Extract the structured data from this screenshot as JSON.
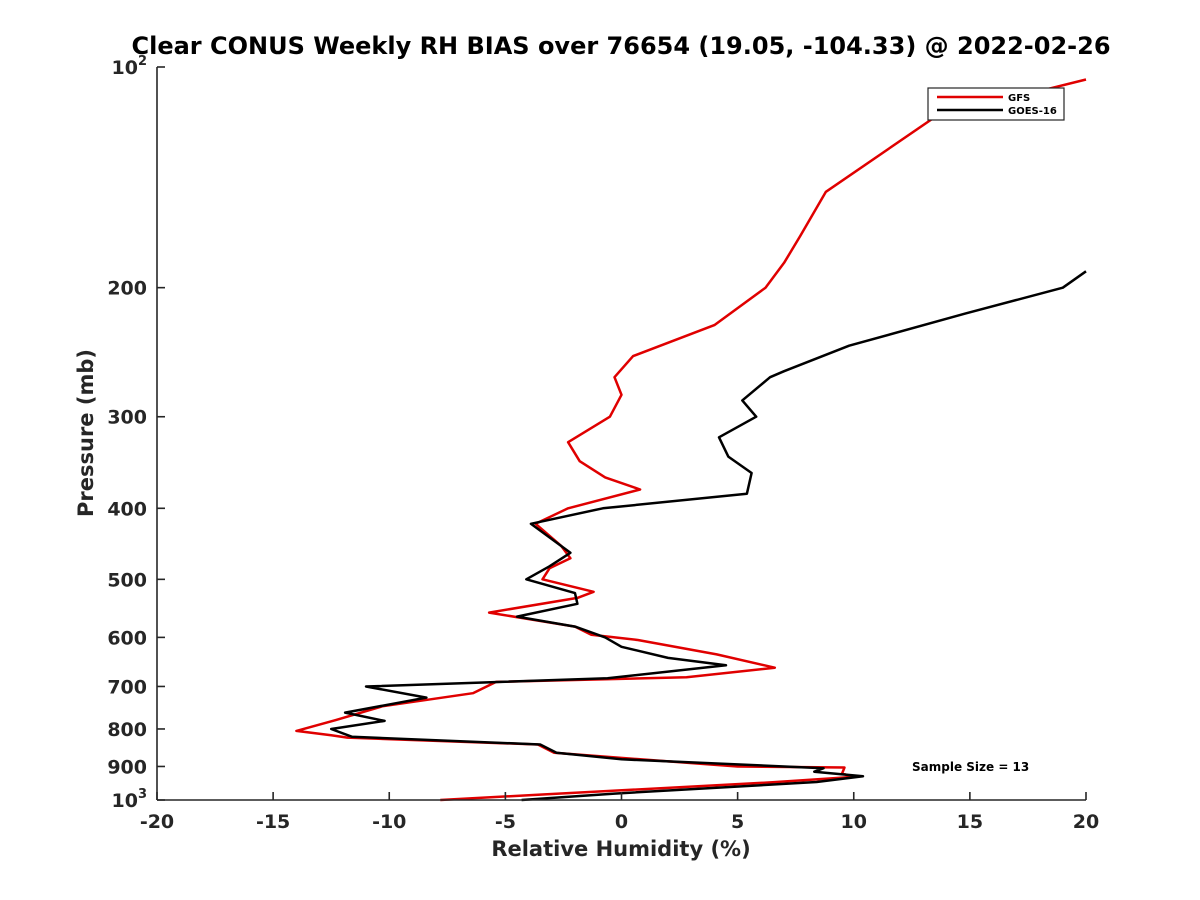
{
  "chart_data": {
    "type": "line",
    "title": "Clear CONUS Weekly RH BIAS over 76654 (19.05, -104.33) @ 2022-02-26",
    "xlabel": "Relative Humidity (%)",
    "ylabel": "Pressure (mb)",
    "xlim": [
      -20,
      20
    ],
    "ylim": [
      100,
      1000
    ],
    "yscale": "log",
    "y_reversed": true,
    "xticks": [
      -20,
      -15,
      -10,
      -5,
      0,
      5,
      10,
      15,
      20
    ],
    "xtick_labels": [
      "-20",
      "-15",
      "-10",
      "-5",
      "0",
      "5",
      "10",
      "15",
      "20"
    ],
    "yticks": [
      {
        "value": 100,
        "base": "10",
        "exp": "2"
      },
      {
        "value": 200,
        "label": "200"
      },
      {
        "value": 300,
        "label": "300"
      },
      {
        "value": 400,
        "label": "400"
      },
      {
        "value": 500,
        "label": "500"
      },
      {
        "value": 600,
        "label": "600"
      },
      {
        "value": 700,
        "label": "700"
      },
      {
        "value": 800,
        "label": "800"
      },
      {
        "value": 900,
        "label": "900"
      },
      {
        "value": 1000,
        "base": "10",
        "exp": "3"
      }
    ],
    "legend_position": "top-right",
    "annotation": "Sample Size = 13",
    "series": [
      {
        "name": "GFS",
        "color": "#e00000",
        "points": [
          [
            20,
            104
          ],
          [
            13.5,
            117
          ],
          [
            8.8,
            148
          ],
          [
            7.7,
            170
          ],
          [
            7.0,
            185
          ],
          [
            6.2,
            200
          ],
          [
            4.0,
            225
          ],
          [
            0.5,
            248
          ],
          [
            -0.3,
            265
          ],
          [
            0.0,
            280
          ],
          [
            -0.5,
            300
          ],
          [
            -2.3,
            325
          ],
          [
            -1.8,
            345
          ],
          [
            -0.7,
            363
          ],
          [
            0.8,
            377
          ],
          [
            -2.3,
            400
          ],
          [
            -3.7,
            420
          ],
          [
            -2.6,
            450
          ],
          [
            -2.2,
            468
          ],
          [
            -3.1,
            483
          ],
          [
            -3.4,
            500
          ],
          [
            -1.2,
            520
          ],
          [
            -1.9,
            530
          ],
          [
            -5.7,
            555
          ],
          [
            -2.0,
            580
          ],
          [
            -1.3,
            595
          ],
          [
            0.7,
            605
          ],
          [
            4.1,
            633
          ],
          [
            6.6,
            660
          ],
          [
            2.8,
            680
          ],
          [
            -5.4,
            690
          ],
          [
            -6.4,
            715
          ],
          [
            -10.3,
            745
          ],
          [
            -12.3,
            778
          ],
          [
            -14.0,
            805
          ],
          [
            -12.5,
            816
          ],
          [
            -11.8,
            822
          ],
          [
            -3.6,
            840
          ],
          [
            -2.9,
            862
          ],
          [
            0.8,
            880
          ],
          [
            5.0,
            900
          ],
          [
            9.6,
            903
          ],
          [
            9.5,
            920
          ],
          [
            10.0,
            930
          ],
          [
            6.5,
            946
          ],
          [
            -3.4,
            983
          ],
          [
            -7.8,
            1000
          ]
        ]
      },
      {
        "name": "GOES-16",
        "color": "#000000",
        "points": [
          [
            20,
            190
          ],
          [
            19.0,
            200
          ],
          [
            14.8,
            217
          ],
          [
            9.8,
            240
          ],
          [
            7.0,
            260
          ],
          [
            6.4,
            265
          ],
          [
            5.2,
            285
          ],
          [
            5.8,
            300
          ],
          [
            4.2,
            320
          ],
          [
            4.6,
            340
          ],
          [
            5.6,
            358
          ],
          [
            5.4,
            382
          ],
          [
            -0.8,
            400
          ],
          [
            -3.9,
            420
          ],
          [
            -2.2,
            460
          ],
          [
            -3.1,
            480
          ],
          [
            -4.1,
            500
          ],
          [
            -2.0,
            522
          ],
          [
            -1.9,
            540
          ],
          [
            -4.5,
            562
          ],
          [
            -2.0,
            580
          ],
          [
            -0.7,
            600
          ],
          [
            0.0,
            618
          ],
          [
            2.0,
            640
          ],
          [
            4.5,
            655
          ],
          [
            -0.6,
            682
          ],
          [
            -11.0,
            700
          ],
          [
            -8.4,
            725
          ],
          [
            -11.9,
            760
          ],
          [
            -10.2,
            780
          ],
          [
            -12.5,
            800
          ],
          [
            -11.6,
            820
          ],
          [
            -3.5,
            840
          ],
          [
            -2.8,
            862
          ],
          [
            0.0,
            880
          ],
          [
            8.7,
            905
          ],
          [
            8.3,
            915
          ],
          [
            10.4,
            928
          ],
          [
            8.4,
            945
          ],
          [
            -0.3,
            980
          ],
          [
            -4.3,
            1000
          ]
        ]
      }
    ]
  }
}
